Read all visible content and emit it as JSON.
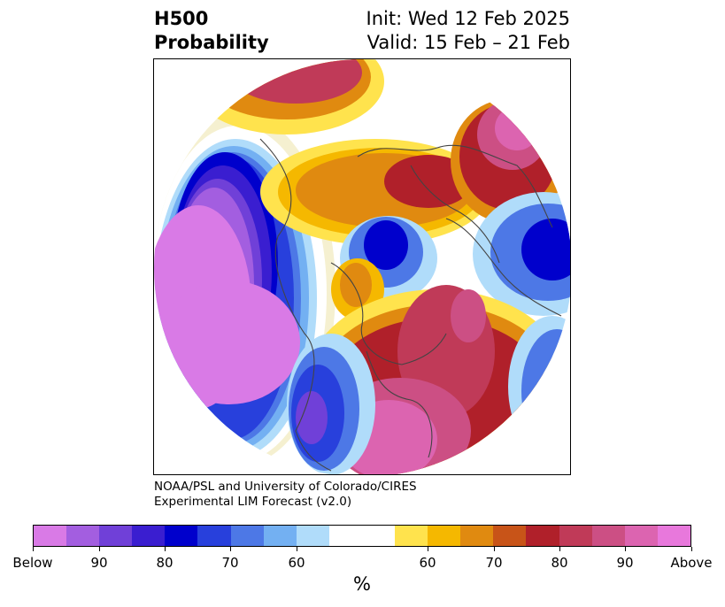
{
  "header": {
    "title_line1": "H500",
    "title_line2": "Probability",
    "init": "Init: Wed 12 Feb 2025",
    "valid": "Valid: 15 Feb – 21 Feb"
  },
  "credit": {
    "line1": "NOAA/PSL and University of Colorado/CIRES",
    "line2": "Experimental LIM Forecast (v2.0)"
  },
  "colorbar": {
    "unit": "%",
    "colors": [
      "#d97ae6",
      "#a35ee0",
      "#7040d8",
      "#3a1ed0",
      "#0000cc",
      "#2840dc",
      "#4d78e6",
      "#73b0f2",
      "#b0dcfa",
      "#ffffff",
      "#ffffff",
      "#ffe34d",
      "#f5b800",
      "#e08a10",
      "#c85418",
      "#b0202a",
      "#c03a58",
      "#cc4f84",
      "#dc64b0",
      "#e878dc"
    ],
    "ticks": [
      "Below",
      "90",
      "80",
      "70",
      "60",
      "60",
      "70",
      "80",
      "90",
      "Above"
    ]
  }
}
